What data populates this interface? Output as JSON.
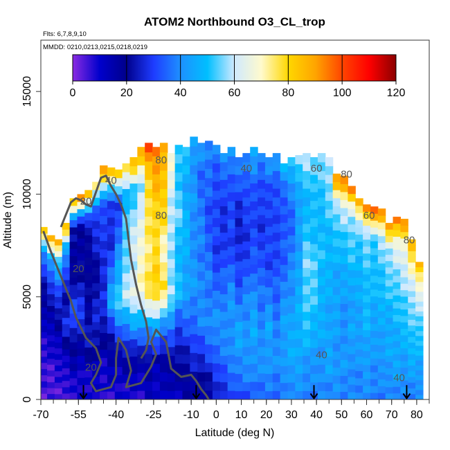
{
  "chart_data": {
    "type": "heatmap",
    "title": "ATOM2 Northbound O3_CL_trop",
    "flights_note": "Flts: 6,7,8,9,10",
    "dates_note": "MMDD: 0210,0213,0215,0218,0219",
    "xlabel": "Latitude (deg N)",
    "ylabel": "Altitude (m)",
    "xlim": [
      -70,
      85
    ],
    "ylim": [
      0,
      17500
    ],
    "x_ticks": [
      -70,
      -55,
      -40,
      -25,
      -10,
      0,
      10,
      20,
      30,
      40,
      50,
      60,
      70,
      80
    ],
    "y_ticks": [
      0,
      5000,
      10000,
      15000
    ],
    "colorbar": {
      "range": [
        0,
        120
      ],
      "ticks": [
        0,
        20,
        40,
        60,
        80,
        100,
        120
      ],
      "stops": [
        "#8a2be2",
        "#0000cc",
        "#00008b",
        "#1e3cff",
        "#1e90ff",
        "#00bfff",
        "#cfe9ff",
        "#fffacd",
        "#ffd700",
        "#ffa500",
        "#ff4500",
        "#ff0000",
        "#8b0000"
      ]
    },
    "contour_labels": [
      {
        "value": "20",
        "lat": -52,
        "alt": 9500
      },
      {
        "value": "20",
        "lat": -55,
        "alt": 6200
      },
      {
        "value": "20",
        "lat": -50,
        "alt": 1400
      },
      {
        "value": "40",
        "lat": -42,
        "alt": 10500
      },
      {
        "value": "80",
        "lat": -22,
        "alt": 8800
      },
      {
        "value": "80",
        "lat": -22,
        "alt": 11500
      },
      {
        "value": "40",
        "lat": 12,
        "alt": 11100
      },
      {
        "value": "60",
        "lat": 40,
        "alt": 11100
      },
      {
        "value": "80",
        "lat": 52,
        "alt": 10800
      },
      {
        "value": "60",
        "lat": 61,
        "alt": 8800
      },
      {
        "value": "80",
        "lat": 77,
        "alt": 7600
      },
      {
        "value": "40",
        "lat": 42,
        "alt": 2000
      },
      {
        "value": "40",
        "lat": 73,
        "alt": 900
      }
    ],
    "sample_arrows_lat": [
      -53,
      -8,
      39,
      76
    ],
    "profiles": [
      {
        "lat": -69,
        "top": 8400,
        "vals": [
          5,
          5,
          8,
          10,
          18,
          25,
          40,
          92
        ]
      },
      {
        "lat": -66,
        "top": 8000,
        "vals": [
          5,
          5,
          8,
          12,
          20,
          30,
          45,
          90
        ]
      },
      {
        "lat": -63,
        "top": 7800,
        "vals": [
          5,
          6,
          10,
          15,
          25,
          35,
          50,
          92
        ]
      },
      {
        "lat": -60,
        "top": 8600,
        "vals": [
          5,
          8,
          15,
          30,
          20,
          30,
          45,
          90
        ]
      },
      {
        "lat": -57,
        "top": 9800,
        "vals": [
          8,
          12,
          20,
          35,
          20,
          18,
          22,
          92
        ]
      },
      {
        "lat": -54,
        "top": 10000,
        "vals": [
          8,
          10,
          20,
          30,
          25,
          15,
          20,
          98
        ]
      },
      {
        "lat": -51,
        "top": 10200,
        "vals": [
          8,
          12,
          25,
          20,
          18,
          20,
          25,
          90
        ]
      },
      {
        "lat": -48,
        "top": 10600,
        "vals": [
          8,
          12,
          25,
          25,
          20,
          25,
          30,
          80
        ]
      },
      {
        "lat": -45,
        "top": 11400,
        "vals": [
          8,
          10,
          20,
          30,
          25,
          30,
          35,
          100
        ]
      },
      {
        "lat": -42,
        "top": 11300,
        "vals": [
          8,
          12,
          25,
          45,
          35,
          25,
          30,
          95
        ]
      },
      {
        "lat": -39,
        "top": 11200,
        "vals": [
          8,
          12,
          30,
          55,
          45,
          35,
          30,
          85
        ]
      },
      {
        "lat": -36,
        "top": 11500,
        "vals": [
          8,
          15,
          35,
          60,
          55,
          55,
          45,
          80
        ]
      },
      {
        "lat": -33,
        "top": 11800,
        "vals": [
          8,
          15,
          40,
          65,
          60,
          60,
          50,
          90
        ]
      },
      {
        "lat": -30,
        "top": 12300,
        "vals": [
          8,
          15,
          42,
          70,
          68,
          65,
          55,
          95
        ]
      },
      {
        "lat": -27,
        "top": 12500,
        "vals": [
          10,
          18,
          45,
          78,
          75,
          75,
          80,
          100
        ]
      },
      {
        "lat": -24,
        "top": 12300,
        "vals": [
          10,
          15,
          45,
          82,
          78,
          80,
          86,
          95
        ]
      },
      {
        "lat": -21,
        "top": 12500,
        "vals": [
          10,
          15,
          40,
          78,
          70,
          78,
          84,
          90
        ]
      },
      {
        "lat": -18,
        "top": 12000,
        "vals": [
          12,
          18,
          35,
          60,
          55,
          60,
          62,
          70
        ]
      },
      {
        "lat": -15,
        "top": 12400,
        "vals": [
          12,
          20,
          30,
          50,
          48,
          55,
          50,
          55
        ]
      },
      {
        "lat": -12,
        "top": 12300,
        "vals": [
          15,
          22,
          32,
          45,
          45,
          48,
          45,
          50
        ]
      },
      {
        "lat": -9,
        "top": 12800,
        "vals": [
          15,
          25,
          35,
          42,
          40,
          42,
          40,
          45
        ]
      },
      {
        "lat": -6,
        "top": 12500,
        "vals": [
          15,
          25,
          38,
          40,
          38,
          38,
          35,
          42
        ]
      },
      {
        "lat": -3,
        "top": 12600,
        "vals": [
          18,
          28,
          40,
          38,
          35,
          32,
          35,
          40
        ]
      },
      {
        "lat": 0,
        "top": 12400,
        "vals": [
          22,
          32,
          42,
          35,
          30,
          30,
          32,
          38
        ]
      },
      {
        "lat": 3,
        "top": 12000,
        "vals": [
          25,
          35,
          40,
          38,
          30,
          28,
          30,
          42
        ]
      },
      {
        "lat": 6,
        "top": 12300,
        "vals": [
          28,
          38,
          42,
          40,
          32,
          30,
          32,
          45
        ]
      },
      {
        "lat": 9,
        "top": 11800,
        "vals": [
          30,
          40,
          45,
          35,
          28,
          25,
          30,
          40
        ]
      },
      {
        "lat": 12,
        "top": 12000,
        "vals": [
          32,
          40,
          42,
          38,
          30,
          28,
          32,
          42
        ]
      },
      {
        "lat": 15,
        "top": 12300,
        "vals": [
          32,
          42,
          45,
          40,
          32,
          30,
          35,
          45
        ]
      },
      {
        "lat": 18,
        "top": 12000,
        "vals": [
          35,
          40,
          40,
          36,
          32,
          28,
          30,
          40
        ]
      },
      {
        "lat": 21,
        "top": 11800,
        "vals": [
          35,
          42,
          45,
          38,
          30,
          30,
          32,
          42
        ]
      },
      {
        "lat": 24,
        "top": 12000,
        "vals": [
          35,
          40,
          38,
          35,
          30,
          32,
          30,
          45
        ]
      },
      {
        "lat": 27,
        "top": 11500,
        "vals": [
          35,
          42,
          44,
          40,
          35,
          32,
          34,
          48
        ]
      },
      {
        "lat": 30,
        "top": 11800,
        "vals": [
          38,
          45,
          45,
          42,
          38,
          35,
          38,
          52
        ]
      },
      {
        "lat": 33,
        "top": 11900,
        "vals": [
          38,
          44,
          48,
          45,
          45,
          42,
          45,
          60
        ]
      },
      {
        "lat": 36,
        "top": 12000,
        "vals": [
          38,
          42,
          50,
          55,
          55,
          50,
          48,
          62
        ]
      },
      {
        "lat": 39,
        "top": 11800,
        "vals": [
          38,
          40,
          48,
          52,
          55,
          48,
          50,
          58
        ]
      },
      {
        "lat": 42,
        "top": 12000,
        "vals": [
          38,
          42,
          45,
          48,
          50,
          48,
          52,
          55
        ]
      },
      {
        "lat": 45,
        "top": 11800,
        "vals": [
          38,
          44,
          45,
          45,
          48,
          50,
          55,
          60
        ]
      },
      {
        "lat": 48,
        "top": 11000,
        "vals": [
          40,
          42,
          42,
          45,
          45,
          50,
          58,
          95
        ]
      },
      {
        "lat": 51,
        "top": 10900,
        "vals": [
          38,
          42,
          40,
          42,
          45,
          52,
          60,
          100
        ]
      },
      {
        "lat": 54,
        "top": 10400,
        "vals": [
          38,
          40,
          45,
          42,
          48,
          52,
          58,
          95
        ]
      },
      {
        "lat": 57,
        "top": 9800,
        "vals": [
          38,
          40,
          42,
          45,
          45,
          50,
          55,
          90
        ]
      },
      {
        "lat": 60,
        "top": 9500,
        "vals": [
          38,
          42,
          45,
          48,
          50,
          52,
          58,
          98
        ]
      },
      {
        "lat": 63,
        "top": 9400,
        "vals": [
          38,
          40,
          42,
          45,
          48,
          50,
          55,
          105
        ]
      },
      {
        "lat": 66,
        "top": 9300,
        "vals": [
          38,
          40,
          44,
          45,
          50,
          52,
          60,
          100
        ]
      },
      {
        "lat": 69,
        "top": 8600,
        "vals": [
          38,
          42,
          45,
          45,
          50,
          55,
          60,
          92
        ]
      },
      {
        "lat": 72,
        "top": 8900,
        "vals": [
          38,
          44,
          45,
          48,
          52,
          58,
          65,
          98
        ]
      },
      {
        "lat": 75,
        "top": 8800,
        "vals": [
          38,
          42,
          45,
          50,
          55,
          60,
          68,
          95
        ]
      },
      {
        "lat": 78,
        "top": 7800,
        "vals": [
          38,
          42,
          48,
          52,
          55,
          62,
          72,
          90
        ]
      },
      {
        "lat": 81,
        "top": 6700,
        "vals": [
          38,
          42,
          45,
          50,
          55,
          60,
          72,
          85
        ]
      }
    ],
    "contours": [
      {
        "level": 20,
        "lat": [
          -69,
          -66,
          -62,
          -58,
          -56,
          -52,
          -48,
          -46,
          -48,
          -50,
          -48,
          -42,
          -40,
          -40,
          -39,
          -36,
          -34,
          -36,
          -30,
          -26,
          -24,
          -26,
          -24,
          -20,
          -18,
          -14,
          -10,
          -8,
          -6,
          -4,
          -3
        ],
        "alt": [
          8200,
          7200,
          6000,
          4800,
          4000,
          3000,
          2500,
          1800,
          1200,
          800,
          400,
          600,
          1200,
          2000,
          3000,
          2400,
          1400,
          600,
          800,
          1600,
          2200,
          2800,
          3400,
          2800,
          1500,
          1100,
          1200,
          900,
          500,
          200,
          0
        ]
      },
      {
        "level": 40,
        "lat": [
          -62,
          -60,
          -58,
          -56,
          -54,
          -52,
          -50,
          -48,
          -46,
          -44,
          -42,
          -40,
          -38,
          -36,
          -35,
          -34,
          -32,
          -30,
          -28,
          -27,
          -28,
          -30
        ],
        "alt": [
          8400,
          9000,
          9600,
          9800,
          9700,
          9500,
          9400,
          10100,
          10800,
          10900,
          10400,
          10000,
          9500,
          8800,
          7800,
          6800,
          5600,
          4600,
          3800,
          3000,
          2400,
          2000
        ]
      }
    ]
  }
}
